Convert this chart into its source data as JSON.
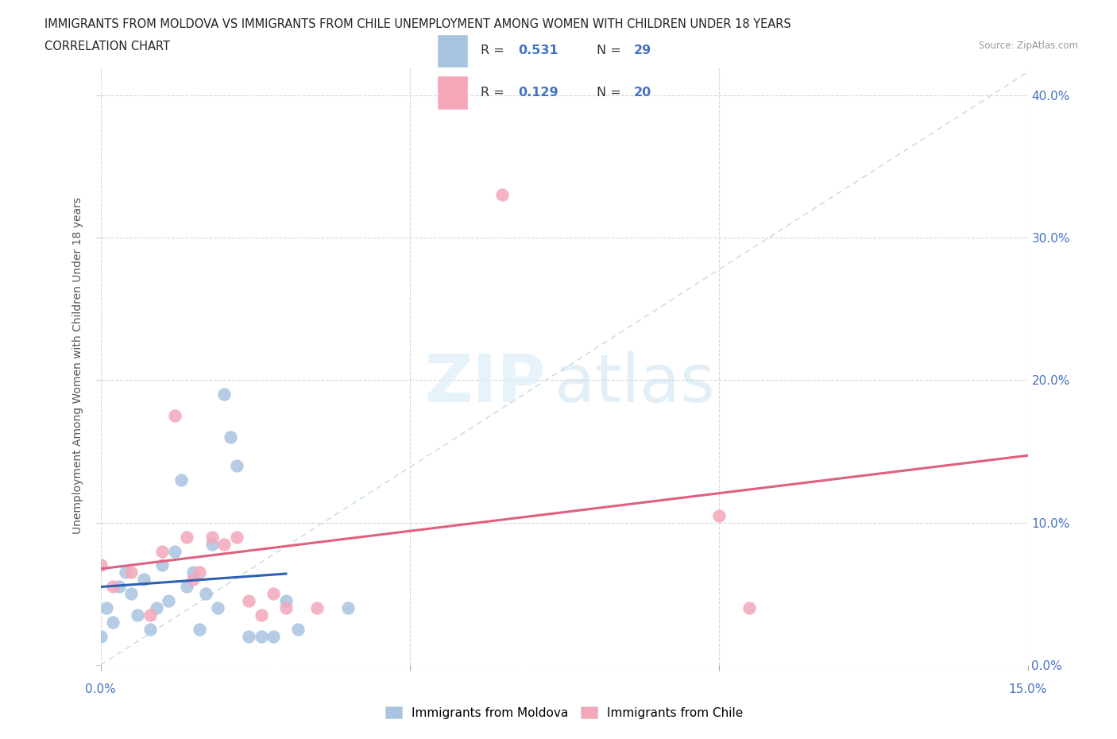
{
  "title_line1": "IMMIGRANTS FROM MOLDOVA VS IMMIGRANTS FROM CHILE UNEMPLOYMENT AMONG WOMEN WITH CHILDREN UNDER 18 YEARS",
  "title_line2": "CORRELATION CHART",
  "source": "Source: ZipAtlas.com",
  "ylabel": "Unemployment Among Women with Children Under 18 years",
  "watermark_zip": "ZIP",
  "watermark_atlas": "atlas",
  "moldova_color": "#a8c4e0",
  "chile_color": "#f4a7b9",
  "moldova_line_color": "#3060b0",
  "chile_line_color": "#e06080",
  "diagonal_color": "#c0d8e8",
  "R_moldova": 0.531,
  "N_moldova": 29,
  "R_chile": 0.129,
  "N_chile": 20,
  "xlim": [
    0.0,
    0.15
  ],
  "ylim": [
    0.0,
    0.42
  ],
  "yticks": [
    0.0,
    0.1,
    0.2,
    0.3,
    0.4
  ],
  "xticks": [
    0.0,
    0.05,
    0.1,
    0.15
  ],
  "moldova_x": [
    0.0,
    0.001,
    0.002,
    0.003,
    0.004,
    0.005,
    0.006,
    0.007,
    0.008,
    0.009,
    0.01,
    0.011,
    0.012,
    0.013,
    0.014,
    0.015,
    0.016,
    0.017,
    0.018,
    0.019,
    0.02,
    0.021,
    0.022,
    0.024,
    0.026,
    0.028,
    0.03,
    0.032,
    0.04
  ],
  "moldova_y": [
    0.02,
    0.04,
    0.03,
    0.055,
    0.065,
    0.05,
    0.035,
    0.06,
    0.025,
    0.04,
    0.07,
    0.045,
    0.08,
    0.13,
    0.055,
    0.065,
    0.025,
    0.05,
    0.085,
    0.04,
    0.19,
    0.16,
    0.14,
    0.02,
    0.02,
    0.02,
    0.045,
    0.025,
    0.04
  ],
  "chile_x": [
    0.0,
    0.002,
    0.005,
    0.008,
    0.01,
    0.012,
    0.014,
    0.015,
    0.016,
    0.018,
    0.02,
    0.022,
    0.024,
    0.026,
    0.028,
    0.03,
    0.035,
    0.065,
    0.1,
    0.105
  ],
  "chile_y": [
    0.07,
    0.055,
    0.065,
    0.035,
    0.08,
    0.175,
    0.09,
    0.06,
    0.065,
    0.09,
    0.085,
    0.09,
    0.045,
    0.035,
    0.05,
    0.04,
    0.04,
    0.33,
    0.105,
    0.04
  ],
  "moldova_line_x": [
    0.0,
    0.03
  ],
  "chile_line_x": [
    0.0,
    0.15
  ],
  "background_color": "#ffffff",
  "grid_color": "#d8d8d8",
  "label_color": "#4472c4",
  "text_color": "#222222"
}
